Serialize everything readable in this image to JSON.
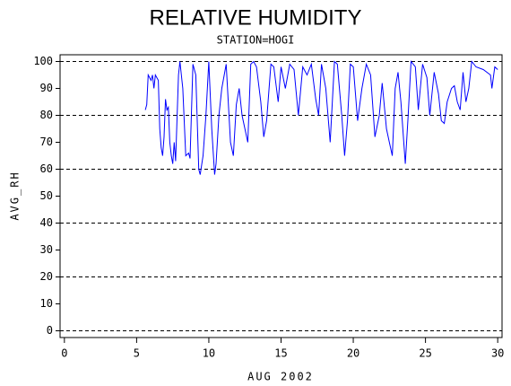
{
  "chart_data": {
    "type": "line",
    "title": "RELATIVE HUMIDITY",
    "subtitle": "STATION=HOGI",
    "x_label": "AUG 2002",
    "y_label": "AVG_RH",
    "color": "#0000ff",
    "x": [
      5.6,
      5.7,
      5.8,
      6.0,
      6.1,
      6.2,
      6.3,
      6.5,
      6.6,
      6.7,
      6.8,
      6.9,
      7.0,
      7.1,
      7.2,
      7.3,
      7.4,
      7.5,
      7.6,
      7.7,
      7.9,
      8.0,
      8.2,
      8.4,
      8.6,
      8.7,
      8.9,
      9.1,
      9.3,
      9.4,
      9.6,
      9.8,
      10.0,
      10.2,
      10.4,
      10.5,
      10.7,
      10.9,
      11.2,
      11.5,
      11.7,
      11.9,
      12.1,
      12.3,
      12.5,
      12.7,
      12.9,
      13.1,
      13.3,
      13.6,
      13.8,
      14.0,
      14.3,
      14.5,
      14.8,
      15.0,
      15.3,
      15.6,
      15.9,
      16.2,
      16.5,
      16.8,
      17.1,
      17.4,
      17.6,
      17.8,
      18.1,
      18.4,
      18.7,
      18.9,
      19.2,
      19.4,
      19.6,
      19.8,
      20.0,
      20.3,
      20.6,
      20.9,
      21.2,
      21.5,
      21.8,
      22.0,
      22.3,
      22.5,
      22.7,
      22.9,
      23.1,
      23.3,
      23.6,
      23.8,
      24.0,
      24.3,
      24.5,
      24.8,
      25.1,
      25.3,
      25.6,
      25.9,
      26.1,
      26.3,
      26.5,
      26.8,
      27.0,
      27.2,
      27.4,
      27.6,
      27.8,
      28.0,
      28.2,
      28.5,
      29.0,
      29.5,
      29.6,
      29.8,
      30.0
    ],
    "values": [
      82,
      84,
      95,
      93,
      95,
      90,
      95,
      93,
      75,
      68,
      65,
      72,
      86,
      82,
      83,
      70,
      65,
      62,
      70,
      63,
      95,
      100,
      90,
      65,
      66,
      64,
      99,
      95,
      60,
      58,
      65,
      80,
      100,
      75,
      58,
      62,
      80,
      90,
      99,
      70,
      65,
      84,
      90,
      80,
      75,
      70,
      99,
      100,
      98,
      85,
      72,
      78,
      99,
      98,
      85,
      98,
      90,
      99,
      97,
      80,
      98,
      95,
      99,
      86,
      80,
      99,
      90,
      70,
      100,
      99,
      80,
      65,
      78,
      99,
      98,
      78,
      90,
      99,
      95,
      72,
      80,
      92,
      75,
      70,
      65,
      90,
      96,
      85,
      62,
      80,
      100,
      98,
      82,
      99,
      94,
      80,
      96,
      88,
      78,
      77,
      85,
      90,
      91,
      85,
      82,
      96,
      85,
      90,
      100,
      98,
      97,
      95,
      90,
      98,
      97
    ],
    "xlim": [
      -0.3,
      30.3
    ],
    "ylim": [
      -2.5,
      102.5
    ],
    "xticks": [
      0,
      5,
      10,
      15,
      20,
      25,
      30
    ],
    "yticks": [
      0,
      10,
      20,
      30,
      40,
      50,
      60,
      70,
      80,
      90,
      100
    ],
    "grid_lines": [
      0,
      20,
      40,
      60,
      80,
      100
    ]
  }
}
